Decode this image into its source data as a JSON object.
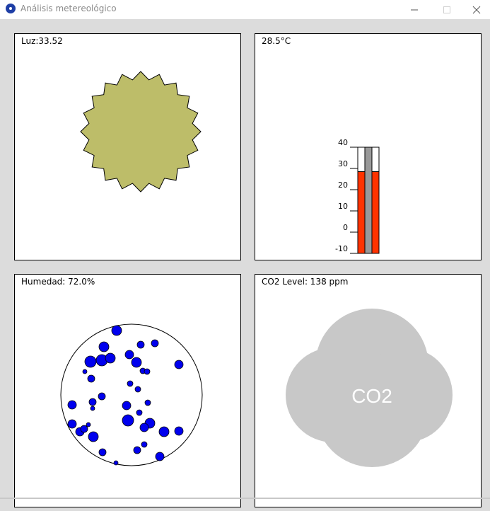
{
  "window": {
    "title": "Análisis metereológico",
    "icon": "circle-app-icon",
    "controls": [
      "minimize-icon",
      "maximize-icon",
      "close-icon"
    ]
  },
  "light_panel": {
    "label": "Luz:33.52",
    "value": 33.52,
    "sun_color": "#bdbd69",
    "shape": "sun-icon"
  },
  "temperature_panel": {
    "label": "28.5°C",
    "value": 28.5,
    "scale_min": -10,
    "scale_max": 40,
    "ticks": [
      "40",
      "30",
      "20",
      "10",
      "0",
      "-10"
    ],
    "fill_color": "#ff3300",
    "core_color": "#999999"
  },
  "humidity_panel": {
    "label": "Humedad: 72.0%",
    "value": 72.0,
    "drop_color": "#0000ee"
  },
  "co2_panel": {
    "label": "CO2 Level: 138 ppm",
    "value": 138,
    "cloud_text": "CO2",
    "cloud_color": "#c8c8c8"
  }
}
